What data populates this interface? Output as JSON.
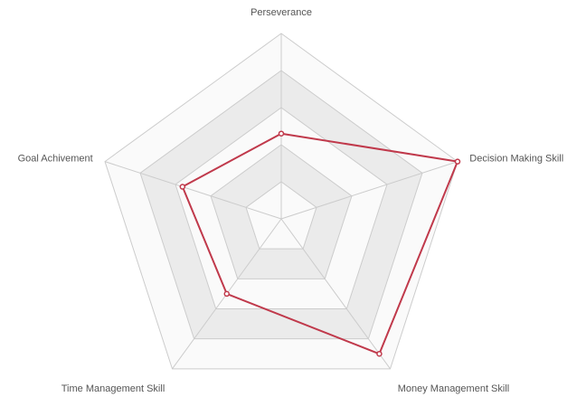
{
  "chart_data": {
    "type": "radar",
    "title": "",
    "axes": [
      "Perseverance",
      "Decision Making Skill",
      "Money Management Skill",
      "Time Management Skill",
      "Goal Achivement"
    ],
    "rlim": [
      0,
      5
    ],
    "ring_count": 5,
    "grid": true,
    "legend": "none",
    "series": [
      {
        "values": [
          2.3,
          5.0,
          4.5,
          2.5,
          2.8
        ],
        "color": "#c0394b"
      }
    ],
    "ring_fill_colors": [
      "#fafafa",
      "#ebebeb"
    ],
    "grid_color": "#cccccc",
    "label_color": "#555555"
  }
}
